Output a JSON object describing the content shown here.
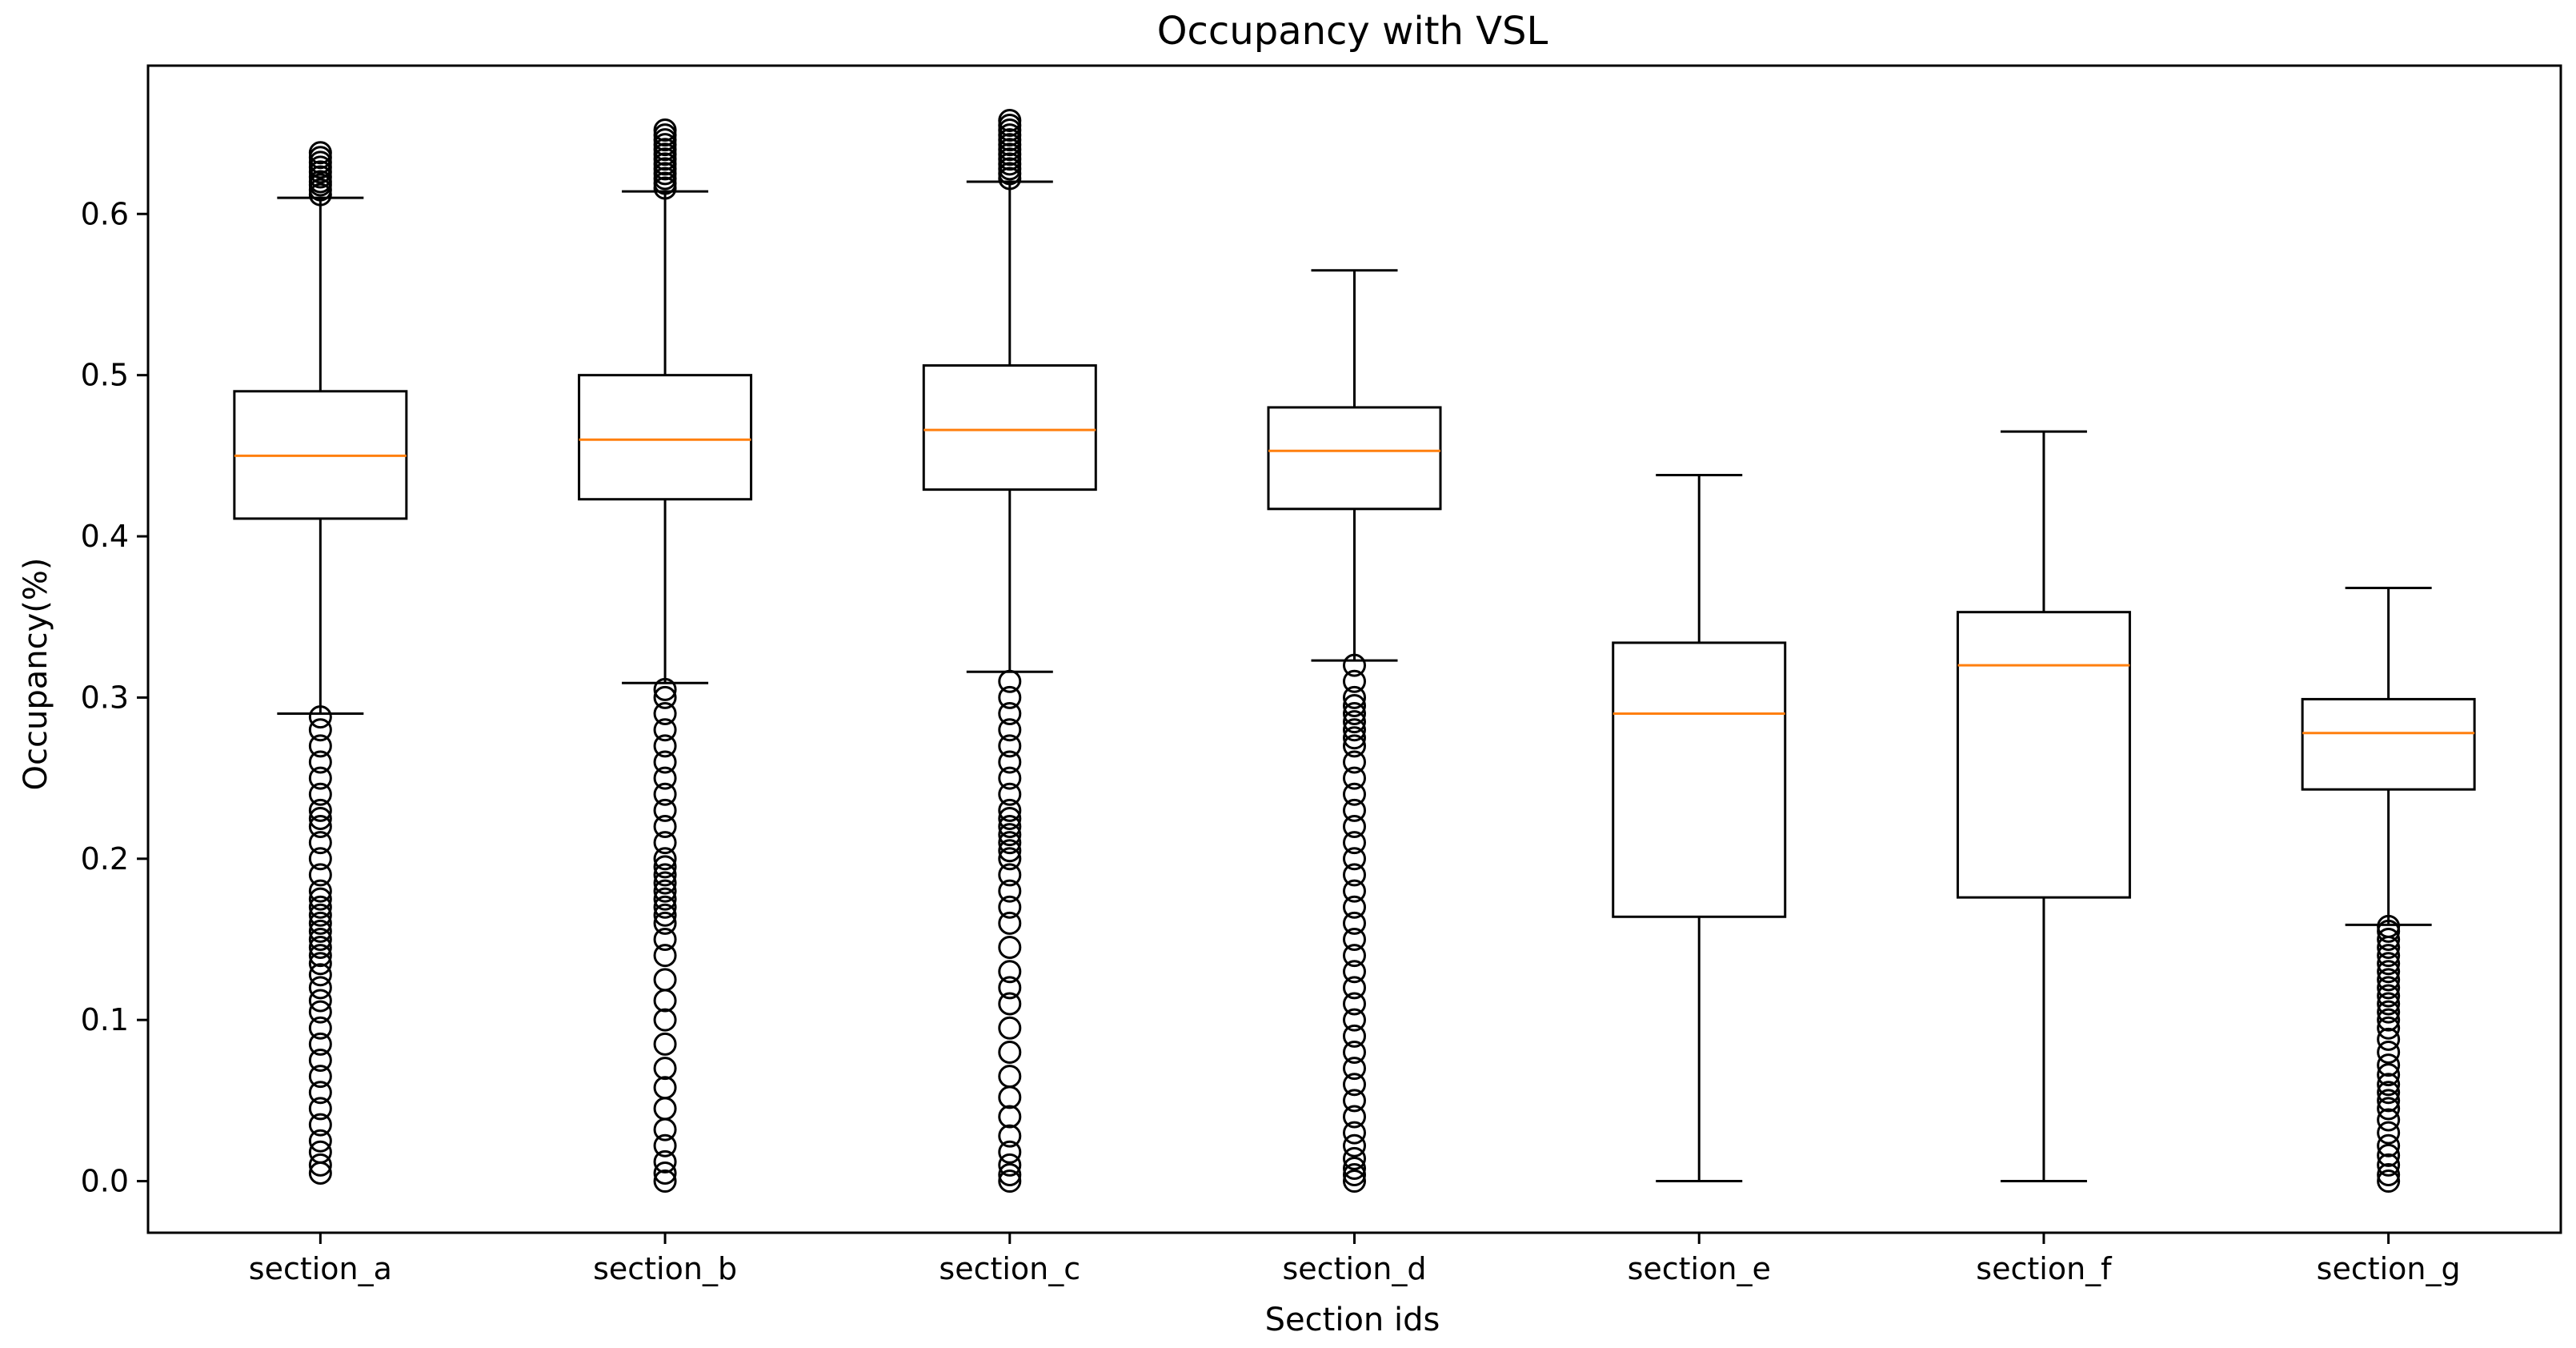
{
  "chart_data": {
    "type": "boxplot",
    "title": "Occupancy with VSL",
    "xlabel": "Section ids",
    "ylabel": "Occupancy(%)",
    "ylim": [
      -0.032,
      0.692
    ],
    "yticks": [
      0.0,
      0.1,
      0.2,
      0.3,
      0.4,
      0.5,
      0.6
    ],
    "ytick_labels": [
      "0.0",
      "0.1",
      "0.2",
      "0.3",
      "0.4",
      "0.5",
      "0.6"
    ],
    "grid": false,
    "colors": {
      "box": "#000000",
      "median": "#ff7f0e",
      "background": "#ffffff"
    },
    "categories": [
      "section_a",
      "section_b",
      "section_c",
      "section_d",
      "section_e",
      "section_f",
      "section_g"
    ],
    "boxes": [
      {
        "name": "section_a",
        "whisker_low": 0.29,
        "q1": 0.411,
        "median": 0.45,
        "q3": 0.49,
        "whisker_high": 0.61,
        "outliers_high": [
          0.612,
          0.615,
          0.618,
          0.62,
          0.623,
          0.626,
          0.629,
          0.632,
          0.635,
          0.638
        ],
        "outliers_low": [
          0.005,
          0.01,
          0.018,
          0.025,
          0.035,
          0.045,
          0.055,
          0.065,
          0.075,
          0.085,
          0.095,
          0.105,
          0.112,
          0.12,
          0.128,
          0.135,
          0.14,
          0.145,
          0.15,
          0.155,
          0.16,
          0.165,
          0.17,
          0.175,
          0.18,
          0.19,
          0.2,
          0.21,
          0.22,
          0.225,
          0.23,
          0.24,
          0.25,
          0.26,
          0.27,
          0.28,
          0.288
        ]
      },
      {
        "name": "section_b",
        "whisker_low": 0.309,
        "q1": 0.423,
        "median": 0.46,
        "q3": 0.5,
        "whisker_high": 0.614,
        "outliers_high": [
          0.616,
          0.619,
          0.622,
          0.625,
          0.628,
          0.631,
          0.634,
          0.637,
          0.64,
          0.643,
          0.646,
          0.649,
          0.652
        ],
        "outliers_low": [
          0.0,
          0.005,
          0.012,
          0.022,
          0.032,
          0.045,
          0.058,
          0.07,
          0.085,
          0.1,
          0.112,
          0.125,
          0.14,
          0.15,
          0.16,
          0.165,
          0.17,
          0.175,
          0.18,
          0.185,
          0.19,
          0.195,
          0.2,
          0.21,
          0.22,
          0.23,
          0.24,
          0.25,
          0.26,
          0.27,
          0.28,
          0.29,
          0.3,
          0.305
        ]
      },
      {
        "name": "section_c",
        "whisker_low": 0.316,
        "q1": 0.429,
        "median": 0.466,
        "q3": 0.506,
        "whisker_high": 0.62,
        "outliers_high": [
          0.622,
          0.625,
          0.628,
          0.631,
          0.634,
          0.637,
          0.64,
          0.643,
          0.646,
          0.649,
          0.652,
          0.655,
          0.658
        ],
        "outliers_low": [
          0.0,
          0.004,
          0.01,
          0.018,
          0.028,
          0.04,
          0.052,
          0.065,
          0.08,
          0.095,
          0.11,
          0.12,
          0.13,
          0.145,
          0.16,
          0.17,
          0.18,
          0.19,
          0.2,
          0.205,
          0.21,
          0.215,
          0.22,
          0.225,
          0.23,
          0.24,
          0.25,
          0.26,
          0.27,
          0.28,
          0.29,
          0.3,
          0.31
        ]
      },
      {
        "name": "section_d",
        "whisker_low": 0.323,
        "q1": 0.417,
        "median": 0.453,
        "q3": 0.48,
        "whisker_high": 0.565,
        "outliers_high": [],
        "outliers_low": [
          0.0,
          0.004,
          0.008,
          0.014,
          0.022,
          0.03,
          0.04,
          0.05,
          0.06,
          0.07,
          0.08,
          0.09,
          0.1,
          0.11,
          0.12,
          0.13,
          0.14,
          0.15,
          0.16,
          0.17,
          0.18,
          0.19,
          0.2,
          0.21,
          0.22,
          0.23,
          0.24,
          0.25,
          0.26,
          0.27,
          0.275,
          0.28,
          0.285,
          0.29,
          0.295,
          0.3,
          0.31,
          0.32
        ]
      },
      {
        "name": "section_e",
        "whisker_low": 0.0,
        "q1": 0.164,
        "median": 0.29,
        "q3": 0.334,
        "whisker_high": 0.438,
        "outliers_high": [],
        "outliers_low": []
      },
      {
        "name": "section_f",
        "whisker_low": 0.0,
        "q1": 0.176,
        "median": 0.32,
        "q3": 0.353,
        "whisker_high": 0.465,
        "outliers_high": [],
        "outliers_low": []
      },
      {
        "name": "section_g",
        "whisker_low": 0.159,
        "q1": 0.243,
        "median": 0.278,
        "q3": 0.299,
        "whisker_high": 0.368,
        "outliers_high": [],
        "outliers_low": [
          0.0,
          0.004,
          0.01,
          0.016,
          0.022,
          0.03,
          0.038,
          0.045,
          0.05,
          0.055,
          0.06,
          0.066,
          0.072,
          0.08,
          0.088,
          0.095,
          0.1,
          0.105,
          0.11,
          0.115,
          0.12,
          0.125,
          0.13,
          0.135,
          0.14,
          0.145,
          0.15,
          0.155,
          0.158
        ]
      }
    ]
  }
}
